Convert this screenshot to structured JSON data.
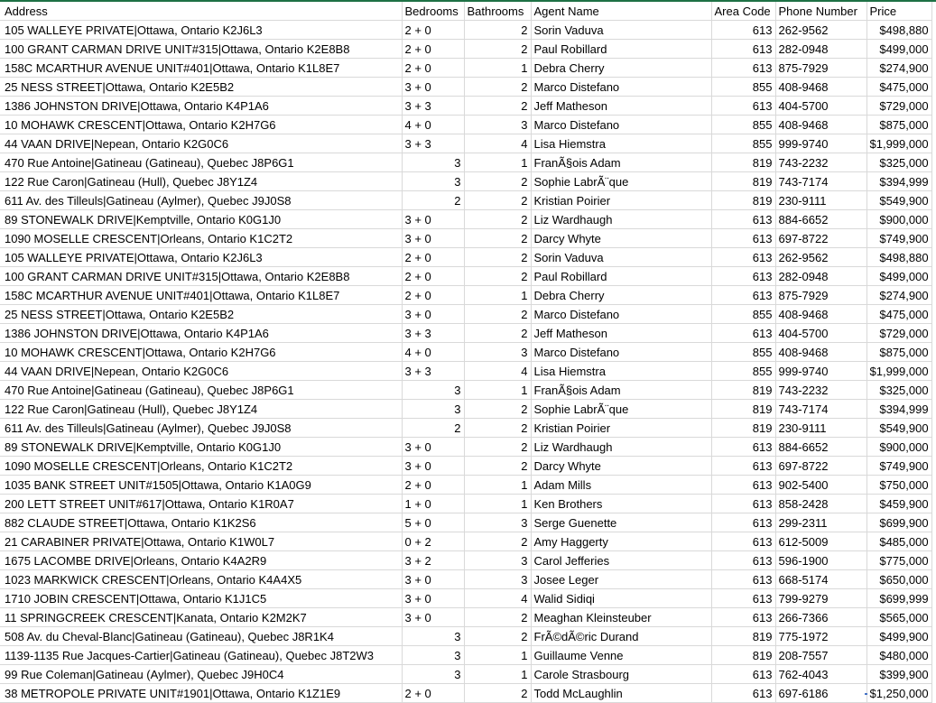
{
  "sheet": {
    "columns": [
      "Address",
      "Bedrooms",
      "Bathrooms",
      "Agent Name",
      "Area Code",
      "Phone Number",
      "Price"
    ],
    "rows": [
      [
        "105 WALLEYE PRIVATE|Ottawa, Ontario K2J6L3",
        "2 + 0",
        "2",
        "Sorin Vaduva",
        "613",
        "262-9562",
        "$498,880"
      ],
      [
        "100 GRANT CARMAN DRIVE UNIT#315|Ottawa, Ontario K2E8B8",
        "2 + 0",
        "2",
        "Paul Robillard",
        "613",
        "282-0948",
        "$499,000"
      ],
      [
        "158C MCARTHUR AVENUE UNIT#401|Ottawa, Ontario K1L8E7",
        "2 + 0",
        "1",
        "Debra Cherry",
        "613",
        "875-7929",
        "$274,900"
      ],
      [
        "25 NESS STREET|Ottawa, Ontario K2E5B2",
        "3 + 0",
        "2",
        "Marco Distefano",
        "855",
        "408-9468",
        "$475,000"
      ],
      [
        "1386 JOHNSTON DRIVE|Ottawa, Ontario K4P1A6",
        "3 + 3",
        "2",
        "Jeff Matheson",
        "613",
        "404-5700",
        "$729,000"
      ],
      [
        "10 MOHAWK CRESCENT|Ottawa, Ontario K2H7G6",
        "4 + 0",
        "3",
        "Marco Distefano",
        "855",
        "408-9468",
        "$875,000"
      ],
      [
        "44 VAAN DRIVE|Nepean, Ontario K2G0C6",
        "3 + 3",
        "4",
        "Lisa Hiemstra",
        "855",
        "999-9740",
        "$1,999,000"
      ],
      [
        "470 Rue Antoine|Gatineau (Gatineau), Quebec J8P6G1",
        "3",
        "1",
        "FranÃ§ois Adam",
        "819",
        "743-2232",
        "$325,000"
      ],
      [
        "122 Rue Caron|Gatineau (Hull), Quebec J8Y1Z4",
        "3",
        "2",
        "Sophie LabrÃ¨que",
        "819",
        "743-7174",
        "$394,999"
      ],
      [
        "611 Av. des Tilleuls|Gatineau (Aylmer), Quebec J9J0S8",
        "2",
        "2",
        "Kristian Poirier",
        "819",
        "230-9111",
        "$549,900"
      ],
      [
        "89 STONEWALK DRIVE|Kemptville, Ontario K0G1J0",
        "3 + 0",
        "2",
        "Liz Wardhaugh",
        "613",
        "884-6652",
        "$900,000"
      ],
      [
        "1090 MOSELLE CRESCENT|Orleans, Ontario K1C2T2",
        "3 + 0",
        "2",
        "Darcy Whyte",
        "613",
        "697-8722",
        "$749,900"
      ],
      [
        "105 WALLEYE PRIVATE|Ottawa, Ontario K2J6L3",
        "2 + 0",
        "2",
        "Sorin Vaduva",
        "613",
        "262-9562",
        "$498,880"
      ],
      [
        "100 GRANT CARMAN DRIVE UNIT#315|Ottawa, Ontario K2E8B8",
        "2 + 0",
        "2",
        "Paul Robillard",
        "613",
        "282-0948",
        "$499,000"
      ],
      [
        "158C MCARTHUR AVENUE UNIT#401|Ottawa, Ontario K1L8E7",
        "2 + 0",
        "1",
        "Debra Cherry",
        "613",
        "875-7929",
        "$274,900"
      ],
      [
        "25 NESS STREET|Ottawa, Ontario K2E5B2",
        "3 + 0",
        "2",
        "Marco Distefano",
        "855",
        "408-9468",
        "$475,000"
      ],
      [
        "1386 JOHNSTON DRIVE|Ottawa, Ontario K4P1A6",
        "3 + 3",
        "2",
        "Jeff Matheson",
        "613",
        "404-5700",
        "$729,000"
      ],
      [
        "10 MOHAWK CRESCENT|Ottawa, Ontario K2H7G6",
        "4 + 0",
        "3",
        "Marco Distefano",
        "855",
        "408-9468",
        "$875,000"
      ],
      [
        "44 VAAN DRIVE|Nepean, Ontario K2G0C6",
        "3 + 3",
        "4",
        "Lisa Hiemstra",
        "855",
        "999-9740",
        "$1,999,000"
      ],
      [
        "470 Rue Antoine|Gatineau (Gatineau), Quebec J8P6G1",
        "3",
        "1",
        "FranÃ§ois Adam",
        "819",
        "743-2232",
        "$325,000"
      ],
      [
        "122 Rue Caron|Gatineau (Hull), Quebec J8Y1Z4",
        "3",
        "2",
        "Sophie LabrÃ¨que",
        "819",
        "743-7174",
        "$394,999"
      ],
      [
        "611 Av. des Tilleuls|Gatineau (Aylmer), Quebec J9J0S8",
        "2",
        "2",
        "Kristian Poirier",
        "819",
        "230-9111",
        "$549,900"
      ],
      [
        "89 STONEWALK DRIVE|Kemptville, Ontario K0G1J0",
        "3 + 0",
        "2",
        "Liz Wardhaugh",
        "613",
        "884-6652",
        "$900,000"
      ],
      [
        "1090 MOSELLE CRESCENT|Orleans, Ontario K1C2T2",
        "3 + 0",
        "2",
        "Darcy Whyte",
        "613",
        "697-8722",
        "$749,900"
      ],
      [
        "1035 BANK STREET UNIT#1505|Ottawa, Ontario K1A0G9",
        "2 + 0",
        "1",
        "Adam Mills",
        "613",
        "902-5400",
        "$750,000"
      ],
      [
        "200 LETT STREET UNIT#617|Ottawa, Ontario K1R0A7",
        "1 + 0",
        "1",
        "Ken Brothers",
        "613",
        "858-2428",
        "$459,900"
      ],
      [
        "882 CLAUDE STREET|Ottawa, Ontario K1K2S6",
        "5 + 0",
        "3",
        "Serge Guenette",
        "613",
        "299-2311",
        "$699,900"
      ],
      [
        "21 CARABINER PRIVATE|Ottawa, Ontario K1W0L7",
        "0 + 2",
        "2",
        "Amy Haggerty",
        "613",
        "612-5009",
        "$485,000"
      ],
      [
        "1675 LACOMBE DRIVE|Orleans, Ontario K4A2R9",
        "3 + 2",
        "3",
        "Carol Jefferies",
        "613",
        "596-1900",
        "$775,000"
      ],
      [
        "1023 MARKWICK CRESCENT|Orleans, Ontario K4A4X5",
        "3 + 0",
        "3",
        "Josee Leger",
        "613",
        "668-5174",
        "$650,000"
      ],
      [
        "1710 JOBIN CRESCENT|Ottawa, Ontario K1J1C5",
        "3 + 0",
        "4",
        "Walid Sidiqi",
        "613",
        "799-9279",
        "$699,999"
      ],
      [
        "11 SPRINGCREEK CRESCENT|Kanata, Ontario K2M2K7",
        "3 + 0",
        "2",
        "Meaghan Kleinsteuber",
        "613",
        "266-7366",
        "$565,000"
      ],
      [
        "508 Av. du Cheval-Blanc|Gatineau (Gatineau), Quebec J8R1K4",
        "3",
        "2",
        "FrÃ©dÃ©ric Durand",
        "819",
        "775-1972",
        "$499,900"
      ],
      [
        "1139-1135 Rue Jacques-Cartier|Gatineau (Gatineau), Quebec J8T2W3",
        "3",
        "1",
        "Guillaume Venne",
        "819",
        "208-7557",
        "$480,000"
      ],
      [
        "99 Rue Coleman|Gatineau (Aylmer), Quebec J9H0C4",
        "3",
        "1",
        "Carole Strasbourg",
        "613",
        "762-4043",
        "$399,900"
      ],
      [
        "38 METROPOLE PRIVATE UNIT#1901|Ottawa, Ontario K1Z1E9",
        "2 + 0",
        "2",
        "Todd McLaughlin",
        "613",
        "697-6186",
        "$1,250,000"
      ]
    ]
  }
}
